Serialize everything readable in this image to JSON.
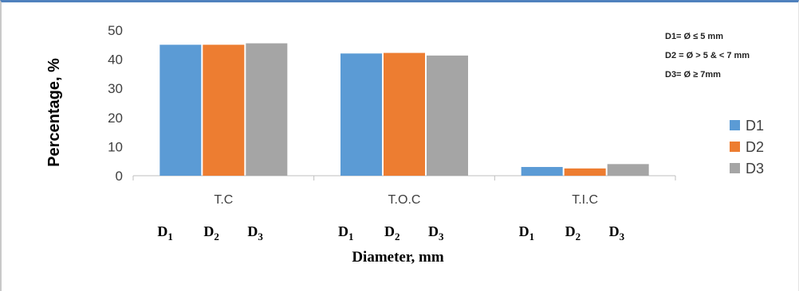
{
  "chart_data": {
    "type": "bar",
    "title": "",
    "ylabel": "Percentage, %",
    "xlabel": "Diameter, mm",
    "ylim": [
      0,
      50
    ],
    "yticks": [
      0,
      10,
      20,
      30,
      40,
      50
    ],
    "categories": [
      "T.C",
      "T.O.C",
      "T.I.C"
    ],
    "series": [
      {
        "name": "D1",
        "color": "#5b9bd5",
        "values": [
          45.0,
          42.0,
          3.0
        ]
      },
      {
        "name": "D2",
        "color": "#ed7d31",
        "values": [
          45.0,
          42.2,
          2.5
        ]
      },
      {
        "name": "D3",
        "color": "#a5a5a5",
        "values": [
          45.5,
          41.3,
          4.0
        ]
      }
    ],
    "legend_position": "right",
    "grid": false,
    "annotations": [
      "D1= Ø ≤ 5 mm",
      "D2 = Ø > 5 & < 7 mm",
      "D3= Ø ≥ 7mm"
    ],
    "subscript_labels": [
      {
        "base": "D",
        "sub": "1"
      },
      {
        "base": "D",
        "sub": "2"
      },
      {
        "base": "D",
        "sub": "3"
      }
    ]
  }
}
